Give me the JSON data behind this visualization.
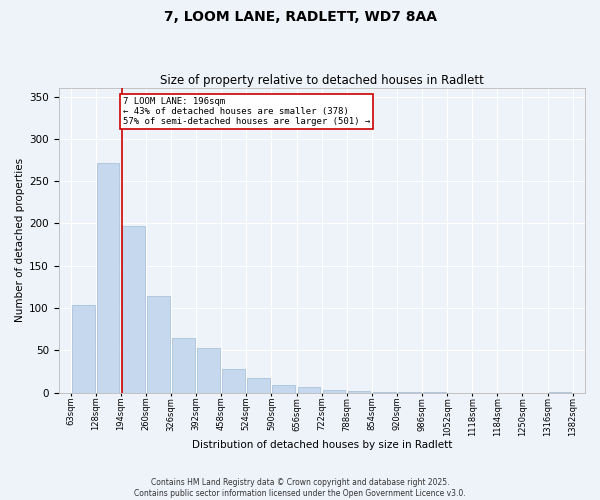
{
  "title": "7, LOOM LANE, RADLETT, WD7 8AA",
  "subtitle": "Size of property relative to detached houses in Radlett",
  "xlabel": "Distribution of detached houses by size in Radlett",
  "ylabel": "Number of detached properties",
  "bar_color": "#c5d8ed",
  "bar_edge_color": "#a0bdd8",
  "background_color": "#eef2f9",
  "grid_color": "#ffffff",
  "bins": [
    63,
    128,
    194,
    260,
    326,
    392,
    458,
    524,
    590,
    656,
    722,
    788,
    854,
    920,
    986,
    1052,
    1118,
    1184,
    1250,
    1316,
    1382
  ],
  "bin_labels": [
    "63sqm",
    "128sqm",
    "194sqm",
    "260sqm",
    "326sqm",
    "392sqm",
    "458sqm",
    "524sqm",
    "590sqm",
    "656sqm",
    "722sqm",
    "788sqm",
    "854sqm",
    "920sqm",
    "986sqm",
    "1052sqm",
    "1118sqm",
    "1184sqm",
    "1250sqm",
    "1316sqm",
    "1382sqm"
  ],
  "values": [
    103,
    272,
    197,
    114,
    65,
    53,
    28,
    17,
    9,
    7,
    3,
    2,
    1,
    1,
    1,
    0,
    0,
    0,
    0,
    1
  ],
  "ylim": [
    0,
    360
  ],
  "yticks": [
    0,
    50,
    100,
    150,
    200,
    250,
    300,
    350
  ],
  "property_size": 196,
  "property_label": "7 LOOM LANE: 196sqm",
  "annotation_line1": "← 43% of detached houses are smaller (378)",
  "annotation_line2": "57% of semi-detached houses are larger (501) →",
  "annotation_box_color": "#ffffff",
  "annotation_box_edge": "#cc0000",
  "property_line_color": "#cc0000",
  "footer_line1": "Contains HM Land Registry data © Crown copyright and database right 2025.",
  "footer_line2": "Contains public sector information licensed under the Open Government Licence v3.0."
}
